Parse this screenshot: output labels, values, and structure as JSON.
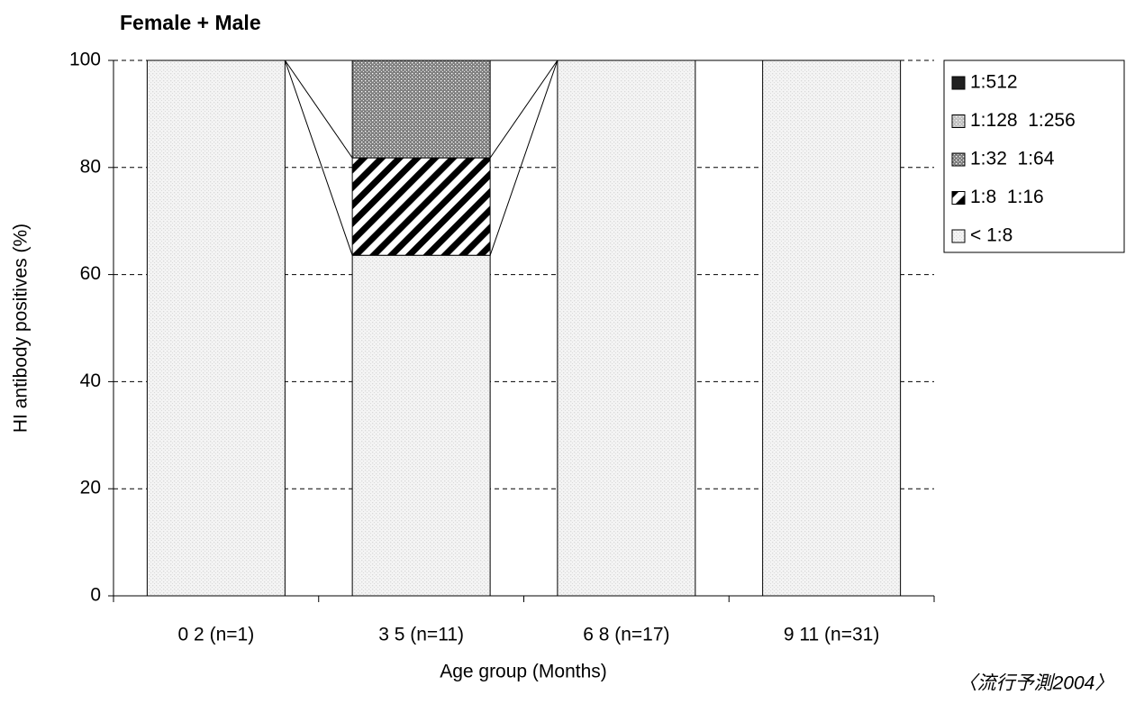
{
  "chart_data": {
    "type": "stacked_bar",
    "title": "Female + Male",
    "ylabel": "HI antibody positives (%)",
    "xlabel": "Age group (Months)",
    "categories": [
      "0 2 (n=1)",
      "3 5 (n=11)",
      "6 8 (n=17)",
      "9 11 (n=31)"
    ],
    "series": [
      {
        "name": "< 1:8",
        "color": "#d9d9d9",
        "values": [
          100,
          63.6,
          100,
          100
        ]
      },
      {
        "name": "1:8  1:16",
        "color": "#000000",
        "values": [
          0,
          18.2,
          0,
          0
        ]
      },
      {
        "name": "1:32  1:64",
        "color": "#808080",
        "values": [
          0,
          18.2,
          0,
          0
        ]
      },
      {
        "name": "1:128  1:256",
        "color": "#c0c0c0",
        "values": [
          0,
          0,
          0,
          0
        ]
      },
      {
        "name": "1:512",
        "color": "#202020",
        "values": [
          0,
          0,
          0,
          0
        ]
      }
    ],
    "ylim": [
      0,
      100
    ],
    "yticks": [
      0,
      20,
      40,
      60,
      80,
      100
    ],
    "grid": true,
    "legend": "right",
    "annotation": "〈流行予測2004〉"
  }
}
